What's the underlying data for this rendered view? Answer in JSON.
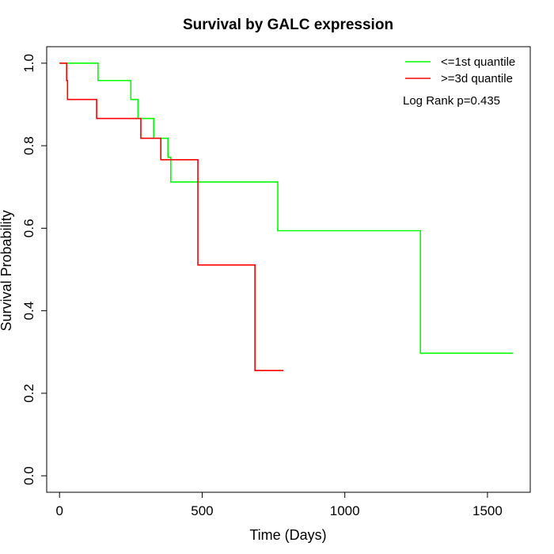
{
  "chart_data": {
    "type": "line",
    "title": "Survival by GALC expression",
    "xlabel": "Time (Days)",
    "ylabel": "Survival Probability",
    "xlim": [
      -45,
      1650
    ],
    "ylim": [
      -0.04,
      1.04
    ],
    "xticks": [
      0,
      500,
      1000,
      1500
    ],
    "yticks": [
      0.0,
      0.2,
      0.4,
      0.6,
      0.8,
      1.0
    ],
    "xtick_labels": [
      "0",
      "500",
      "1000",
      "1500"
    ],
    "ytick_labels": [
      "0.0",
      "0.2",
      "0.4",
      "0.6",
      "0.8",
      "1.0"
    ],
    "grid": false,
    "legend_position": "top-right",
    "annotation": "Log Rank p=0.435",
    "series": [
      {
        "name": "<=1st quantile",
        "color": "#00ff00",
        "step": true,
        "x": [
          0,
          135,
          250,
          275,
          330,
          380,
          390,
          765,
          1265,
          1590
        ],
        "y": [
          1.0,
          0.958,
          0.912,
          0.866,
          0.818,
          0.772,
          0.712,
          0.594,
          0.297,
          0.297
        ]
      },
      {
        "name": ">=3d quantile",
        "color": "#ff0000",
        "step": true,
        "x": [
          0,
          25,
          28,
          130,
          285,
          355,
          485,
          685,
          785
        ],
        "y": [
          1.0,
          0.958,
          0.912,
          0.866,
          0.818,
          0.766,
          0.511,
          0.255,
          0.255
        ]
      }
    ]
  }
}
